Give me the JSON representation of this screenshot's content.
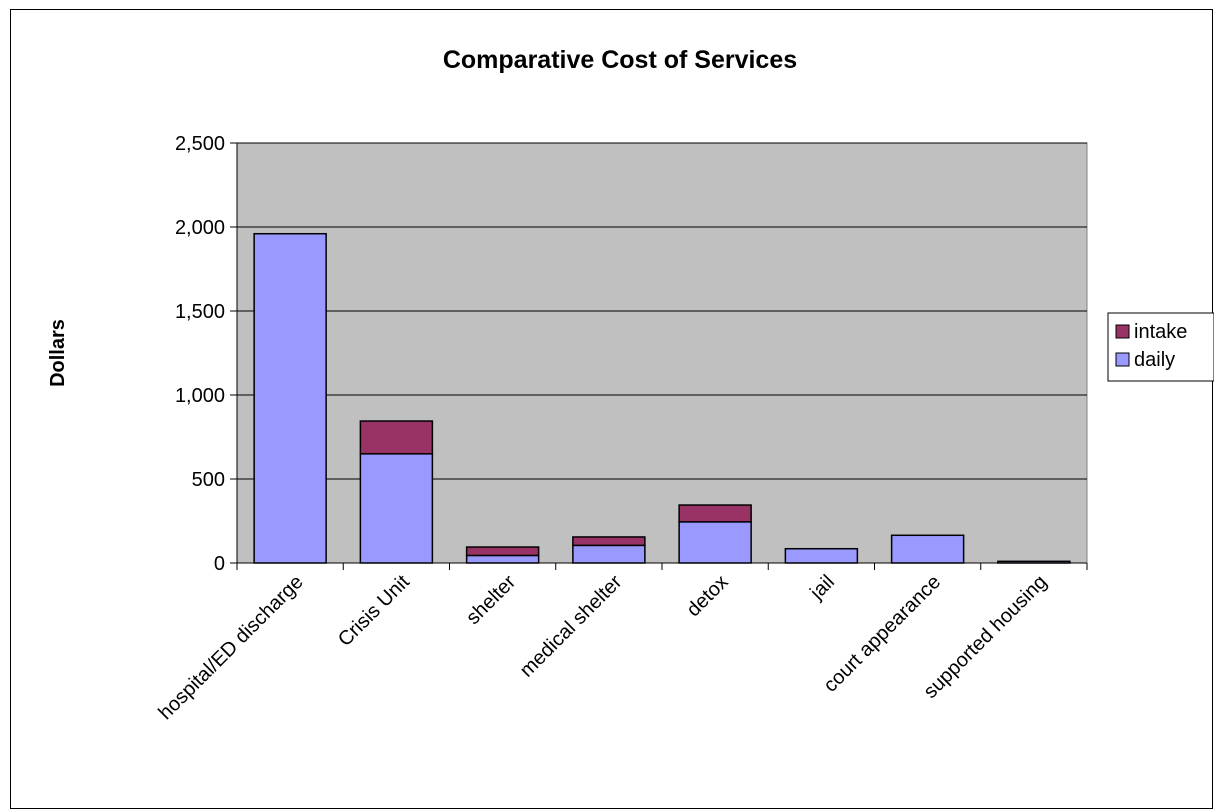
{
  "chart_data": {
    "type": "bar",
    "stacked": true,
    "title": "Comparative Cost of Services",
    "xlabel": "",
    "ylabel": "Dollars",
    "ylim": [
      0,
      2500
    ],
    "yticks": [
      "0",
      "500",
      "1,000",
      "1,500",
      "2,000",
      "2,500"
    ],
    "ytick_values": [
      0,
      500,
      1000,
      1500,
      2000,
      2500
    ],
    "grid": true,
    "legend_position": "right",
    "categories": [
      "hospital/ED discharge",
      "Crisis Unit",
      "shelter",
      "medical shelter",
      "detox",
      "jail",
      "court appearance",
      "supported housing"
    ],
    "series": [
      {
        "name": "daily",
        "color": "#9999ff",
        "values": [
          1960,
          650,
          45,
          105,
          245,
          85,
          165,
          10
        ]
      },
      {
        "name": "intake",
        "color": "#993366",
        "values": [
          0,
          195,
          50,
          50,
          100,
          0,
          0,
          0
        ]
      }
    ],
    "plot_background": "#c0c0c0"
  }
}
